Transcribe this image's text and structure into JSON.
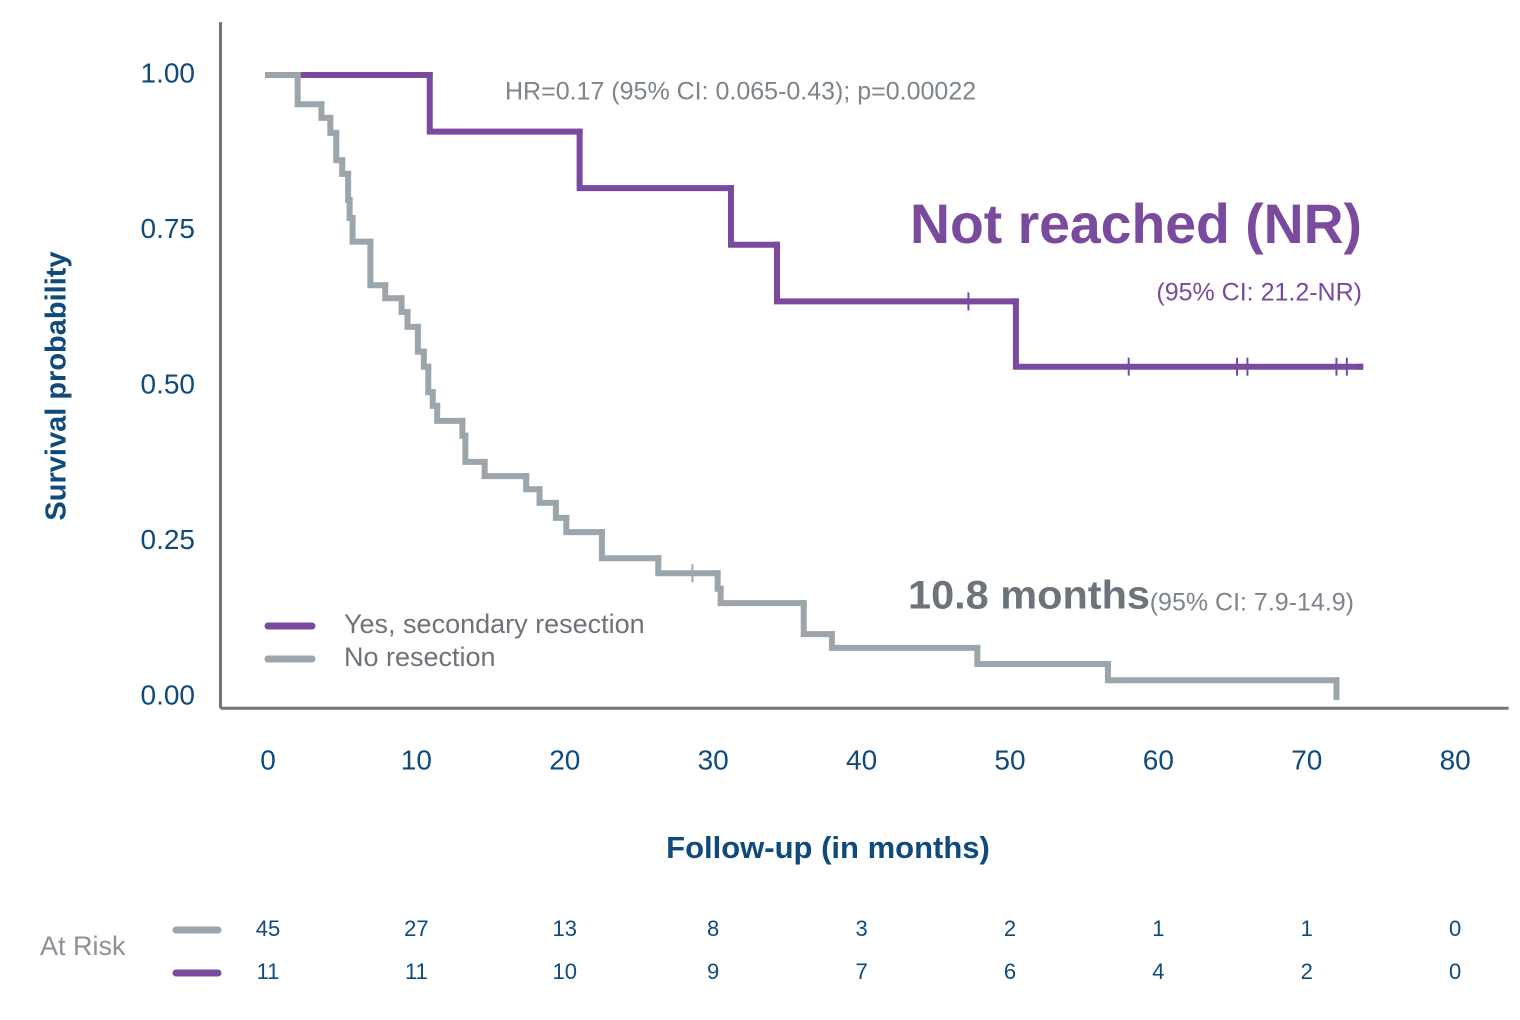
{
  "chart_data": {
    "type": "step",
    "y_label": "Survival probability",
    "x_label": "Follow-up (in months)",
    "xlim": [
      -3.2,
      83.6
    ],
    "ylim": [
      -0.018,
      1.085
    ],
    "xticks": [
      0,
      10,
      20,
      30,
      40,
      50,
      60,
      70,
      80
    ],
    "yticks": [
      {
        "value": 0,
        "label": "0.00"
      },
      {
        "value": 0.25,
        "label": "0.25"
      },
      {
        "value": 0.5,
        "label": "0.50"
      },
      {
        "value": 0.75,
        "label": "0.75"
      },
      {
        "value": 1,
        "label": "1.00"
      }
    ],
    "series": [
      {
        "name": "Yes, secondary resection",
        "color": "#7a4a9e",
        "x": [
          0,
          10.9,
          21.0,
          31.2,
          34.3,
          50.4,
          73.6
        ],
        "values": [
          1,
          0.909,
          0.818,
          0.727,
          0.636,
          0.531,
          0.531
        ],
        "censored": [
          47.2,
          58.0,
          65.3,
          66.0,
          72.0,
          72.7
        ],
        "at_risk": [
          11,
          11,
          10,
          9,
          7,
          6,
          4,
          2,
          0
        ]
      },
      {
        "name": "No resection",
        "color": "#9ba6ac",
        "x": [
          0,
          2.0,
          3.6,
          4.2,
          4.6,
          5.0,
          5.4,
          5.5,
          5.7,
          6.9,
          7.9,
          9.0,
          9.4,
          10.1,
          10.5,
          10.8,
          11.1,
          11.4,
          13.1,
          13.3,
          14.6,
          17.4,
          18.3,
          19.4,
          20.1,
          22.5,
          26.3,
          30.3,
          30.5,
          36.1,
          38.0,
          47.8,
          56.6,
          72.0
        ],
        "values": [
          1,
          0.953,
          0.931,
          0.907,
          0.863,
          0.841,
          0.799,
          0.77,
          0.732,
          0.662,
          0.641,
          0.619,
          0.595,
          0.555,
          0.531,
          0.49,
          0.468,
          0.444,
          0.42,
          0.378,
          0.355,
          0.334,
          0.312,
          0.288,
          0.265,
          0.223,
          0.199,
          0.174,
          0.151,
          0.101,
          0.079,
          0.053,
          0.027,
          0
        ],
        "censored": [
          28.6
        ],
        "at_risk": [
          45,
          27,
          13,
          8,
          3,
          2,
          1,
          1,
          0
        ]
      }
    ],
    "at_risk_label": "At Risk",
    "annotations": [
      {
        "text": "HR=0.17 (95% CI: 0.065-0.43); p=0.00022",
        "color": "#7d848a"
      },
      {
        "text": "Not reached (NR)",
        "color": "#7a4a9e"
      },
      {
        "text": "(95% CI: 21.2-NR)",
        "color": "#7a4a9e"
      },
      {
        "text": "10.8 months",
        "color": "#6c737a"
      },
      {
        "text": "(95% CI: 7.9-14.9)",
        "color": "#7d848a"
      }
    ]
  }
}
